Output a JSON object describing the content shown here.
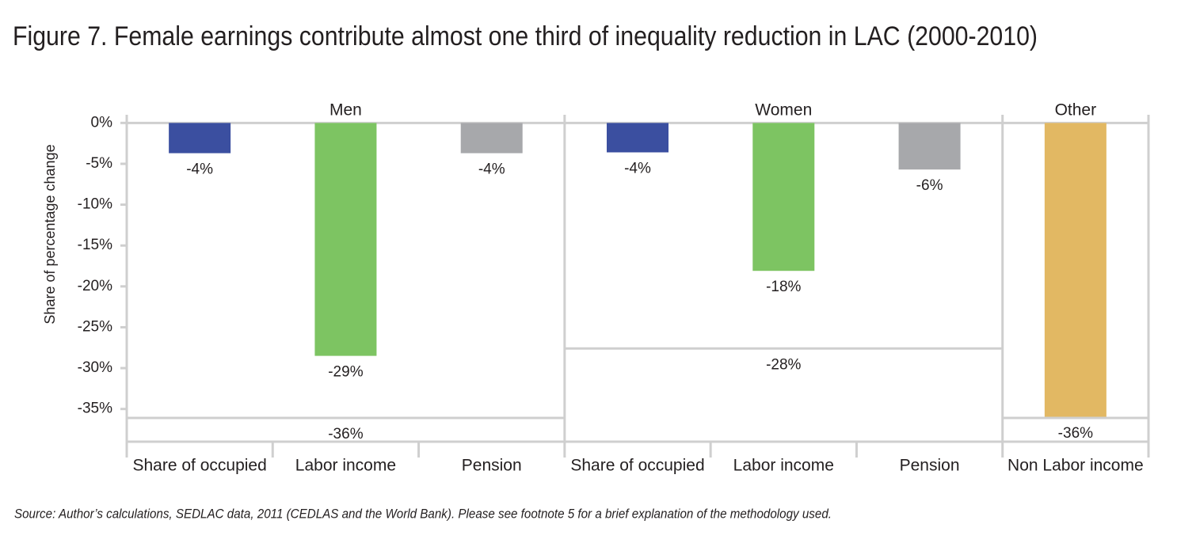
{
  "chart_data": {
    "type": "bar",
    "title": "Figure 7. Female earnings contribute almost one third of inequality reduction in LAC (2000-2010)",
    "y_label": "Share of percentage change",
    "source": "Source: Author’s calculations, SEDLAC data, 2011 (CEDLAS and the World Bank). Please see footnote 5 for a brief explanation of the methodology used.",
    "ylim": [
      -39,
      1
    ],
    "yticks": [
      {
        "value": 0,
        "label": "0%"
      },
      {
        "value": -5,
        "label": "-5%"
      },
      {
        "value": -10,
        "label": "-10%"
      },
      {
        "value": -15,
        "label": "-15%"
      },
      {
        "value": -20,
        "label": "-20%"
      },
      {
        "value": -25,
        "label": "-25%"
      },
      {
        "value": -30,
        "label": "-30%"
      },
      {
        "value": -35,
        "label": "-35%"
      }
    ],
    "groups": [
      {
        "name": "Men",
        "categories": [
          "Share of occupied",
          "Labor income",
          "Pension"
        ],
        "values": [
          -3.7,
          -28.5,
          -3.7
        ],
        "value_labels": [
          "-4%",
          "-29%",
          "-4%"
        ],
        "colors": [
          "#3b4fa0",
          "#7dc462",
          "#a7a8ab"
        ],
        "total": -36.1,
        "total_label": "-36%"
      },
      {
        "name": "Women",
        "categories": [
          "Share of occupied",
          "Labor income",
          "Pension"
        ],
        "values": [
          -3.6,
          -18.1,
          -5.7
        ],
        "value_labels": [
          "-4%",
          "-18%",
          "-6%"
        ],
        "colors": [
          "#3b4fa0",
          "#7dc462",
          "#a7a8ab"
        ],
        "total": -27.6,
        "total_label": "-28%"
      },
      {
        "name": "Other",
        "categories": [
          "Non Labor income"
        ],
        "values": [
          -36
        ],
        "value_labels": [
          "-36%"
        ],
        "colors": [
          "#e2b863"
        ],
        "total": -36.1
      }
    ]
  }
}
